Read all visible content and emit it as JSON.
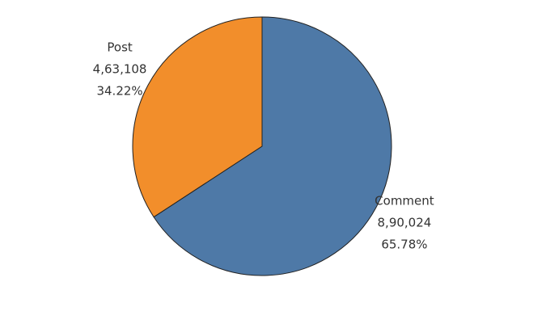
{
  "chart_data": {
    "type": "pie",
    "categories": [
      "Comment",
      "Post"
    ],
    "values": [
      890024,
      463108
    ],
    "value_labels": [
      "8,90,024",
      "4,63,108"
    ],
    "percents": [
      65.78,
      34.22
    ],
    "percent_labels": [
      "65.78%",
      "34.22%"
    ],
    "colors": [
      "#4e79a7",
      "#f28e2b"
    ]
  }
}
